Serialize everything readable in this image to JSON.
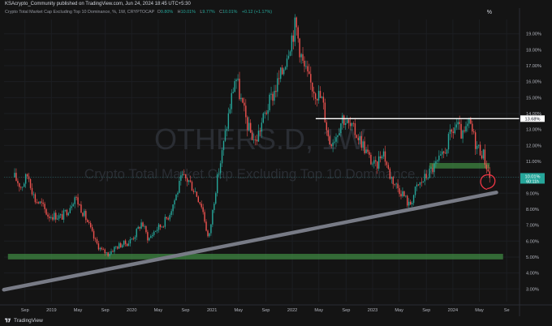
{
  "header": {
    "published": "KSAcrypto_Community published on TradingView.com, Jun 24, 2024 18:45 UTC+5:30",
    "symbol_desc": "Crypto Total Market Cap Excluding Top 10 Dominance, %, 1W, CRYPTOCAP",
    "ohlc": [
      {
        "k": "O",
        "v": "9.80%"
      },
      {
        "k": "H",
        "v": "10.01%"
      },
      {
        "k": "L",
        "v": "9.77%"
      },
      {
        "k": "C",
        "v": "10.01%"
      }
    ],
    "change": "+0.12 (+1.17%)",
    "axis_unit": "%"
  },
  "watermark": {
    "ticker": "OTHERS.D, 1W",
    "name": "Crypto Total Market Cap Excluding Top 10 Dominance, %"
  },
  "price_labels": {
    "resistance": "13.68%",
    "last": "10.01%",
    "countdown": "60:11h"
  },
  "footer": {
    "brand": "TradingView"
  },
  "colors": {
    "up": "#26a69a",
    "down": "#ef5350",
    "zone": "#4caf50",
    "trendline": "#787b86",
    "circle": "#f23645"
  },
  "chart_data": {
    "type": "candlestick",
    "title": "OTHERS.D, 1W",
    "subtitle": "Crypto Total Market Cap Excluding Top 10 Dominance, %",
    "x_ticks": [
      "Sep",
      "2019",
      "May",
      "Sep",
      "2020",
      "May",
      "Sep",
      "2021",
      "May",
      "Sep",
      "2022",
      "May",
      "Sep",
      "2023",
      "May",
      "Sep",
      "2024",
      "May",
      "Se"
    ],
    "y_ticks": [
      "3.00%",
      "4.00%",
      "5.00%",
      "6.00%",
      "7.00%",
      "8.00%",
      "9.00%",
      "10.00%",
      "11.00%",
      "12.00%",
      "13.00%",
      "14.00%",
      "15.00%",
      "16.00%",
      "17.00%",
      "18.00%",
      "19.00%"
    ],
    "ylim": [
      2.2,
      19.9
    ],
    "price_path": [
      [
        "2018-07",
        10.0
      ],
      [
        "2018-08",
        9.4
      ],
      [
        "2018-09",
        10.2
      ],
      [
        "2018-10",
        8.6
      ],
      [
        "2018-11",
        8.3
      ],
      [
        "2018-12",
        7.6
      ],
      [
        "2019-01",
        7.6
      ],
      [
        "2019-02",
        7.5
      ],
      [
        "2019-03",
        8.0
      ],
      [
        "2019-04",
        8.8
      ],
      [
        "2019-05",
        8.0
      ],
      [
        "2019-06",
        7.1
      ],
      [
        "2019-07",
        6.0
      ],
      [
        "2019-08",
        5.4
      ],
      [
        "2019-09",
        5.2
      ],
      [
        "2019-10",
        5.6
      ],
      [
        "2019-11",
        5.8
      ],
      [
        "2019-12",
        5.9
      ],
      [
        "2020-01",
        6.4
      ],
      [
        "2020-02",
        7.2
      ],
      [
        "2020-03",
        6.1
      ],
      [
        "2020-04",
        6.7
      ],
      [
        "2020-05",
        7.0
      ],
      [
        "2020-06",
        7.6
      ],
      [
        "2020-07",
        8.7
      ],
      [
        "2020-08",
        10.0
      ],
      [
        "2020-09",
        9.8
      ],
      [
        "2020-10",
        9.1
      ],
      [
        "2020-11",
        8.2
      ],
      [
        "2020-12",
        6.0
      ],
      [
        "2021-01",
        9.2
      ],
      [
        "2021-02",
        11.5
      ],
      [
        "2021-03",
        14.0
      ],
      [
        "2021-04",
        16.4
      ],
      [
        "2021-05",
        14.5
      ],
      [
        "2021-06",
        13.0
      ],
      [
        "2021-07",
        12.2
      ],
      [
        "2021-08",
        13.5
      ],
      [
        "2021-09",
        14.6
      ],
      [
        "2021-10",
        15.6
      ],
      [
        "2021-11",
        16.6
      ],
      [
        "2021-12",
        18.3
      ],
      [
        "2022-01",
        19.6
      ],
      [
        "2022-02",
        17.2
      ],
      [
        "2022-03",
        16.0
      ],
      [
        "2022-04",
        15.4
      ],
      [
        "2022-05",
        14.8
      ],
      [
        "2022-06",
        12.2
      ],
      [
        "2022-07",
        12.6
      ],
      [
        "2022-08",
        13.8
      ],
      [
        "2022-09",
        13.2
      ],
      [
        "2022-10",
        12.8
      ],
      [
        "2022-11",
        12.1
      ],
      [
        "2022-12",
        11.2
      ],
      [
        "2023-01",
        10.6
      ],
      [
        "2023-02",
        11.8
      ],
      [
        "2023-03",
        10.2
      ],
      [
        "2023-04",
        9.5
      ],
      [
        "2023-05",
        9.0
      ],
      [
        "2023-06",
        8.2
      ],
      [
        "2023-07",
        9.3
      ],
      [
        "2023-08",
        9.8
      ],
      [
        "2023-09",
        10.3
      ],
      [
        "2023-10",
        10.8
      ],
      [
        "2023-11",
        11.3
      ],
      [
        "2023-12",
        12.5
      ],
      [
        "2024-01",
        13.3
      ],
      [
        "2024-02",
        12.5
      ],
      [
        "2024-03",
        13.4
      ],
      [
        "2024-04",
        12.0
      ],
      [
        "2024-05",
        11.5
      ],
      [
        "2024-06",
        10.01
      ]
    ],
    "annotations": {
      "horizontal_line": {
        "y": 13.68,
        "from": "2022-04",
        "to": "2024-06"
      },
      "support_zone_high": {
        "y_low": 4.85,
        "y_high": 5.2,
        "from": "2018-06",
        "to": "2024-08"
      },
      "support_zone_mid": {
        "y_low": 10.55,
        "y_high": 10.9,
        "from": "2023-09",
        "to": "2024-06"
      },
      "trendline": {
        "from": [
          "2018-06",
          2.95
        ],
        "to": [
          "2024-07",
          9.05
        ]
      },
      "circle": {
        "center": [
          "2024-06",
          9.65
        ]
      }
    }
  }
}
